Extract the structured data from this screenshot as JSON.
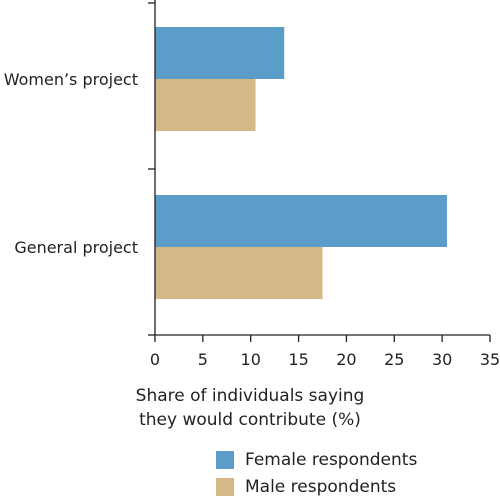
{
  "chart_data": {
    "type": "bar",
    "orientation": "horizontal",
    "title": "",
    "xlabel": [
      "Share of individuals saying",
      "they would contribute (%)"
    ],
    "ylabel": "",
    "categories": [
      "Women’s project",
      "General project"
    ],
    "series": [
      {
        "name": "Female respondents",
        "values": [
          13.5,
          30.5
        ]
      },
      {
        "name": "Male respondents",
        "values": [
          10.5,
          17.5
        ]
      }
    ],
    "xlim": [
      0,
      35
    ],
    "xticks": [
      0,
      5,
      10,
      15,
      20,
      25,
      30,
      35
    ],
    "grid": false,
    "legend_position": "bottom",
    "colors": {
      "Female respondents": "#5b9dc9",
      "Male respondents": "#d4b886",
      "axis": "#231f20",
      "text": "#231f20"
    }
  }
}
